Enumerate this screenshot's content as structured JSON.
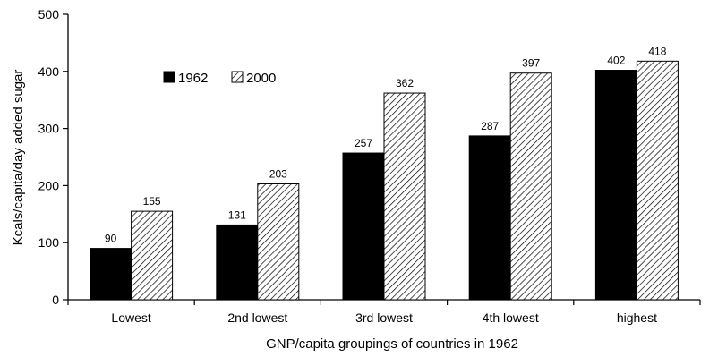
{
  "chart_data": {
    "type": "bar",
    "xlabel": "GNP/capita groupings of countries in 1962",
    "ylabel": "Kcals/capita/day added sugar",
    "categories": [
      "Lowest",
      "2nd lowest",
      "3rd lowest",
      "4th lowest",
      "highest"
    ],
    "series": [
      {
        "name": "1962",
        "values": [
          90,
          131,
          257,
          287,
          402
        ],
        "fill": "#000000",
        "pattern": "solid"
      },
      {
        "name": "2000",
        "values": [
          155,
          203,
          362,
          397,
          418
        ],
        "fill": "#ffffff",
        "pattern": "diagonal-hatch"
      }
    ],
    "ylim": [
      0,
      500
    ],
    "yticks": [
      0,
      100,
      200,
      300,
      400,
      500
    ],
    "grid": false,
    "legend_position": "top-left"
  }
}
